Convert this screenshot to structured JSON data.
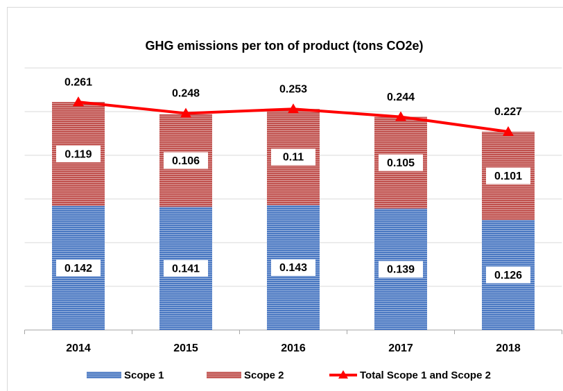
{
  "chart_data": {
    "type": "bar",
    "stacked": true,
    "title": "GHG emissions per ton of product (tons CO2e)",
    "categories": [
      "2014",
      "2015",
      "2016",
      "2017",
      "2018"
    ],
    "series": [
      {
        "name": "Scope 1",
        "color": "#4a78c2",
        "values": [
          0.142,
          0.141,
          0.143,
          0.139,
          0.126
        ]
      },
      {
        "name": "Scope 2",
        "color": "#c0504d",
        "values": [
          0.119,
          0.106,
          0.11,
          0.105,
          0.101
        ]
      },
      {
        "name": "Total Scope 1 and Scope 2",
        "type": "line",
        "color": "#ff0000",
        "values": [
          0.261,
          0.248,
          0.253,
          0.244,
          0.227
        ]
      }
    ],
    "ylim": [
      0,
      0.3
    ],
    "yticks": [
      0,
      0.05,
      0.1,
      0.15,
      0.2,
      0.25,
      0.3
    ],
    "grid": true
  }
}
